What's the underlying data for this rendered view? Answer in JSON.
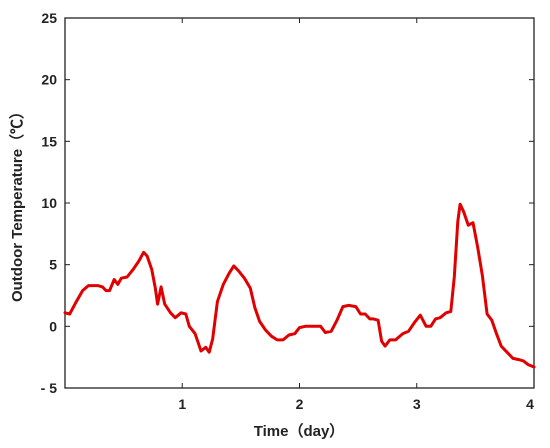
{
  "chart_data": {
    "type": "line",
    "title": "",
    "xlabel": "Time（day）",
    "ylabel": "Outdoor Temperature（℃）",
    "xlim": [
      0,
      4
    ],
    "ylim": [
      -5,
      25
    ],
    "xticks": [
      1,
      2,
      3,
      4
    ],
    "yticks": [
      -5,
      0,
      5,
      10,
      15,
      20,
      25
    ],
    "grid": false,
    "box": "top-right-left-bottom",
    "series": [
      {
        "color": "#e00000",
        "points": [
          [
            0.0,
            1.1
          ],
          [
            0.04,
            1.0
          ],
          [
            0.09,
            1.9
          ],
          [
            0.15,
            2.9
          ],
          [
            0.2,
            3.3
          ],
          [
            0.28,
            3.3
          ],
          [
            0.32,
            3.2
          ],
          [
            0.35,
            2.9
          ],
          [
            0.38,
            2.9
          ],
          [
            0.42,
            3.8
          ],
          [
            0.45,
            3.4
          ],
          [
            0.48,
            3.9
          ],
          [
            0.53,
            4.0
          ],
          [
            0.58,
            4.6
          ],
          [
            0.63,
            5.3
          ],
          [
            0.67,
            6.0
          ],
          [
            0.7,
            5.7
          ],
          [
            0.74,
            4.6
          ],
          [
            0.77,
            3.1
          ],
          [
            0.79,
            1.8
          ],
          [
            0.82,
            3.2
          ],
          [
            0.85,
            1.8
          ],
          [
            0.9,
            1.1
          ],
          [
            0.94,
            0.7
          ],
          [
            0.99,
            1.1
          ],
          [
            1.03,
            1.0
          ],
          [
            1.06,
            0.0
          ],
          [
            1.11,
            -0.6
          ],
          [
            1.16,
            -2.0
          ],
          [
            1.2,
            -1.7
          ],
          [
            1.23,
            -2.1
          ],
          [
            1.26,
            -1.0
          ],
          [
            1.3,
            2.0
          ],
          [
            1.35,
            3.4
          ],
          [
            1.4,
            4.3
          ],
          [
            1.44,
            4.9
          ],
          [
            1.48,
            4.5
          ],
          [
            1.53,
            3.9
          ],
          [
            1.58,
            3.1
          ],
          [
            1.62,
            1.5
          ],
          [
            1.66,
            0.4
          ],
          [
            1.71,
            -0.3
          ],
          [
            1.76,
            -0.8
          ],
          [
            1.81,
            -1.1
          ],
          [
            1.86,
            -1.1
          ],
          [
            1.91,
            -0.7
          ],
          [
            1.96,
            -0.6
          ],
          [
            2.0,
            -0.1
          ],
          [
            2.05,
            0.0
          ],
          [
            2.12,
            0.0
          ],
          [
            2.18,
            0.0
          ],
          [
            2.22,
            -0.5
          ],
          [
            2.27,
            -0.4
          ],
          [
            2.32,
            0.5
          ],
          [
            2.37,
            1.6
          ],
          [
            2.42,
            1.7
          ],
          [
            2.48,
            1.6
          ],
          [
            2.52,
            1.0
          ],
          [
            2.56,
            1.0
          ],
          [
            2.6,
            0.6
          ],
          [
            2.63,
            0.6
          ],
          [
            2.67,
            0.5
          ],
          [
            2.7,
            -1.2
          ],
          [
            2.73,
            -1.6
          ],
          [
            2.77,
            -1.1
          ],
          [
            2.82,
            -1.1
          ],
          [
            2.88,
            -0.6
          ],
          [
            2.93,
            -0.4
          ],
          [
            2.98,
            0.3
          ],
          [
            3.03,
            0.9
          ],
          [
            3.08,
            0.0
          ],
          [
            3.12,
            0.0
          ],
          [
            3.16,
            0.6
          ],
          [
            3.2,
            0.7
          ],
          [
            3.25,
            1.1
          ],
          [
            3.29,
            1.2
          ],
          [
            3.32,
            4.0
          ],
          [
            3.35,
            8.5
          ],
          [
            3.37,
            9.9
          ],
          [
            3.4,
            9.3
          ],
          [
            3.44,
            8.2
          ],
          [
            3.48,
            8.4
          ],
          [
            3.52,
            6.4
          ],
          [
            3.56,
            4.1
          ],
          [
            3.6,
            1.0
          ],
          [
            3.64,
            0.5
          ],
          [
            3.68,
            -0.6
          ],
          [
            3.72,
            -1.6
          ],
          [
            3.77,
            -2.1
          ],
          [
            3.82,
            -2.6
          ],
          [
            3.87,
            -2.7
          ],
          [
            3.91,
            -2.8
          ],
          [
            3.95,
            -3.1
          ],
          [
            4.0,
            -3.3
          ]
        ]
      }
    ]
  }
}
